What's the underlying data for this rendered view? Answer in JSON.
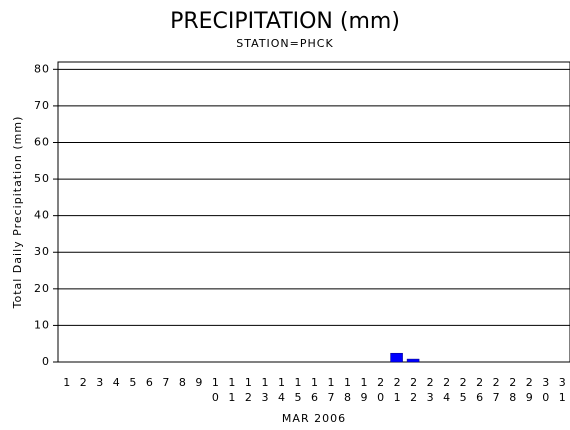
{
  "chart_data": {
    "type": "bar",
    "title": "PRECIPITATION (mm)",
    "subtitle": "STATION=PHCK",
    "y_label": "Total Daily Precipitation (mm)",
    "x_label": "MAR 2006",
    "categories": [
      "1",
      "2",
      "3",
      "4",
      "5",
      "6",
      "7",
      "8",
      "9",
      "10",
      "11",
      "12",
      "13",
      "14",
      "15",
      "16",
      "17",
      "18",
      "19",
      "20",
      "21",
      "22",
      "23",
      "24",
      "25",
      "26",
      "27",
      "28",
      "29",
      "30",
      "31"
    ],
    "values": [
      0,
      0,
      0,
      0,
      0,
      0,
      0,
      0,
      0,
      0,
      0,
      0,
      0,
      0,
      0,
      0,
      0,
      0,
      0,
      0,
      2.4,
      0.8,
      0,
      0,
      0,
      0,
      0,
      0,
      0,
      0,
      0
    ],
    "color": "#0000ff",
    "ylim": [
      0,
      82
    ],
    "yticks": [
      0,
      10,
      20,
      30,
      40,
      50,
      60,
      70,
      80
    ],
    "grid": true
  }
}
